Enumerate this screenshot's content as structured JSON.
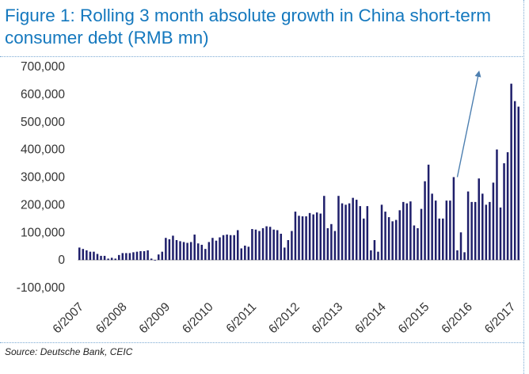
{
  "title": "Figure 1: Rolling 3 month absolute growth in China short-term consumer debt (RMB mn)",
  "source": "Source: Deutsche Bank, CEIC",
  "colors": {
    "bar": "#1f1f6b",
    "arrow": "#4d7fb0",
    "title": "#1478be",
    "axis": "#b3b3b3"
  },
  "chart_data": {
    "type": "bar",
    "title": "Figure 1: Rolling 3 month absolute growth in China short-term consumer debt (RMB mn)",
    "xlabel": "",
    "ylabel": "",
    "ylim": [
      -100000,
      700000
    ],
    "yticks": [
      -100000,
      0,
      100000,
      200000,
      300000,
      400000,
      500000,
      600000,
      700000
    ],
    "ytick_labels": [
      "-100,000",
      "0",
      "100,000",
      "200,000",
      "300,000",
      "400,000",
      "500,000",
      "600,000",
      "700,000"
    ],
    "xtick_labels": [
      "6/2007",
      "6/2008",
      "6/2009",
      "6/2010",
      "6/2011",
      "6/2012",
      "6/2013",
      "6/2014",
      "6/2015",
      "6/2016",
      "6/2017"
    ],
    "grid": false,
    "start": "6/2007",
    "frequency": "monthly",
    "values": [
      45000,
      40000,
      35000,
      30000,
      30000,
      22000,
      15000,
      15000,
      5000,
      8000,
      5000,
      18000,
      25000,
      25000,
      25000,
      28000,
      30000,
      32000,
      32000,
      35000,
      5000,
      -2000,
      20000,
      30000,
      80000,
      75000,
      88000,
      72000,
      68000,
      65000,
      62000,
      65000,
      92000,
      60000,
      55000,
      40000,
      65000,
      80000,
      70000,
      82000,
      90000,
      92000,
      90000,
      90000,
      108000,
      42000,
      52000,
      48000,
      112000,
      110000,
      105000,
      115000,
      122000,
      120000,
      110000,
      108000,
      95000,
      45000,
      72000,
      105000,
      175000,
      160000,
      158000,
      158000,
      170000,
      165000,
      172000,
      168000,
      232000,
      115000,
      130000,
      105000,
      232000,
      205000,
      200000,
      205000,
      225000,
      218000,
      195000,
      150000,
      195000,
      35000,
      72000,
      30000,
      200000,
      175000,
      155000,
      140000,
      145000,
      180000,
      210000,
      205000,
      212000,
      125000,
      115000,
      185000,
      285000,
      345000,
      240000,
      215000,
      150000,
      150000,
      215000,
      215000,
      300000,
      35000,
      100000,
      28000,
      248000,
      210000,
      210000,
      295000,
      240000,
      200000,
      210000,
      280000,
      400000,
      190000,
      350000,
      390000,
      638000,
      575000,
      555000
    ],
    "annotations": [
      {
        "type": "arrow",
        "from": {
          "x": "3/2016",
          "y": 300000
        },
        "to": {
          "x": "9/2016",
          "y": 680000
        }
      }
    ]
  }
}
